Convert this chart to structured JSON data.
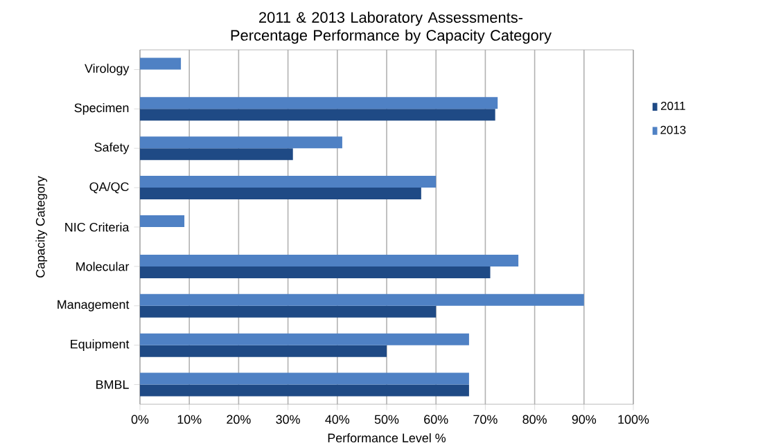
{
  "chart_data": {
    "type": "bar",
    "orientation": "horizontal",
    "title": "2011 & 2013 Laboratory Assessments-Percentage Performance by Capacity Category",
    "xlabel": "Performance Level %",
    "ylabel": "Capacity Category",
    "categories": [
      "Virology",
      "Specimen",
      "Safety",
      "QA/QC",
      "NIC Criteria",
      "Molecular",
      "Management",
      "Equipment",
      "BMBL"
    ],
    "series": [
      {
        "name": "2011",
        "color": "#1f4a85",
        "values": [
          null,
          72,
          31,
          57,
          null,
          71,
          60,
          50,
          66.7
        ]
      },
      {
        "name": "2013",
        "color": "#4f81c4",
        "values": [
          8.3,
          72.5,
          41,
          60,
          9,
          76.7,
          90,
          66.7,
          66.7
        ]
      }
    ],
    "xlim": [
      0,
      100
    ],
    "xticks": [
      {
        "value": 0,
        "label": "0%"
      },
      {
        "value": 10,
        "label": "10%"
      },
      {
        "value": 20,
        "label": "20%"
      },
      {
        "value": 30,
        "label": "30%"
      },
      {
        "value": 40,
        "label": "40%"
      },
      {
        "value": 50,
        "label": "50%"
      },
      {
        "value": 60,
        "label": "60%"
      },
      {
        "value": 70,
        "label": "70%"
      },
      {
        "value": 80,
        "label": "80%"
      },
      {
        "value": 90,
        "label": "90%"
      },
      {
        "value": 100,
        "label": "100%"
      }
    ],
    "grid": "x",
    "legend": "right"
  }
}
